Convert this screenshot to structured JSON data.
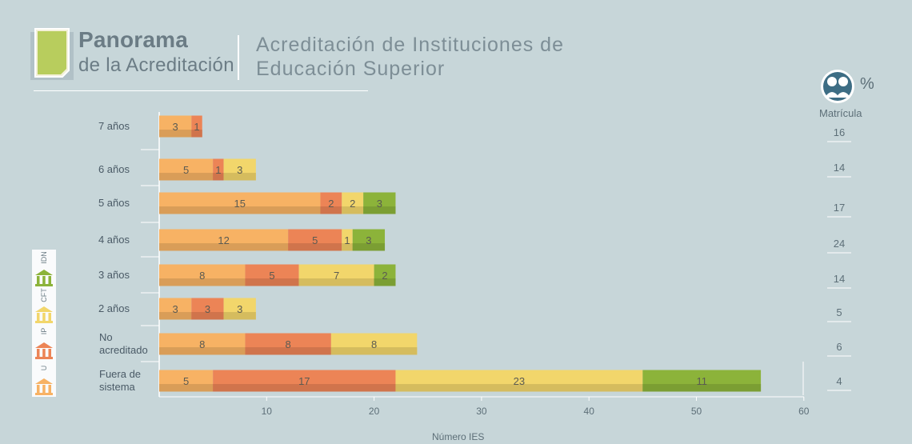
{
  "header": {
    "title_line1": "Panorama",
    "title_line2": "de la Acreditación",
    "subtitle_line1": "Acreditación de Instituciones de",
    "subtitle_line2": "Educación Superior"
  },
  "matricula": {
    "symbol": "%",
    "label": "Matrícula",
    "values": [
      "16",
      "14",
      "17",
      "24",
      "14",
      "5",
      "6",
      "4"
    ]
  },
  "legend": {
    "items": [
      {
        "label": "IDN",
        "color": "#8cb33a"
      },
      {
        "label": "CFT",
        "color": "#f2d66b"
      },
      {
        "label": "IP",
        "color": "#ec8456"
      },
      {
        "label": "U",
        "color": "#f7b264"
      }
    ]
  },
  "colors": {
    "U": "#f7b264",
    "IP": "#ec8456",
    "CFT": "#f2d66b",
    "IDN": "#8cb33a",
    "background": "#c7d6d9"
  },
  "chart_data": {
    "type": "bar",
    "orientation": "horizontal",
    "stacked": true,
    "categories": [
      "7 años",
      "6 años",
      "5 años",
      "4 años",
      "3 años",
      "2 años",
      "No acreditado",
      "Fuera de sistema"
    ],
    "series": [
      {
        "name": "U",
        "values": [
          3,
          5,
          15,
          12,
          8,
          3,
          8,
          5
        ]
      },
      {
        "name": "IP",
        "values": [
          1,
          1,
          2,
          5,
          5,
          3,
          8,
          17
        ]
      },
      {
        "name": "CFT",
        "values": [
          0,
          3,
          2,
          1,
          7,
          3,
          8,
          23
        ]
      },
      {
        "name": "IDN",
        "values": [
          0,
          0,
          3,
          3,
          2,
          0,
          0,
          11
        ]
      }
    ],
    "xlabel": "Número IES",
    "xlim": [
      0,
      60
    ],
    "xticks": [
      10,
      20,
      30,
      40,
      50,
      60
    ]
  }
}
